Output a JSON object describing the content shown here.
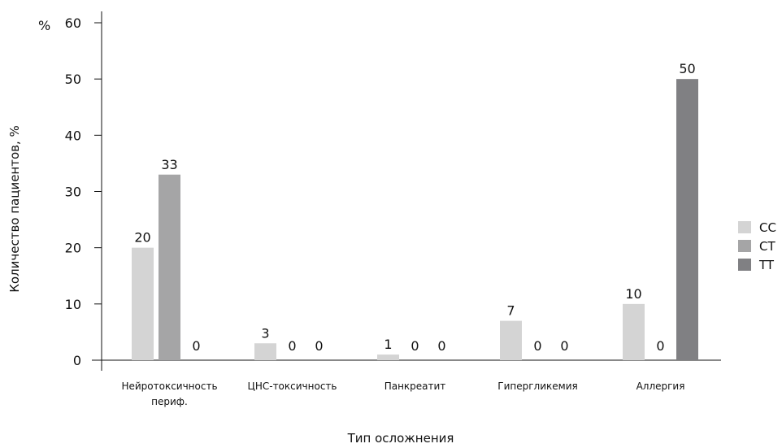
{
  "chart_data": {
    "type": "bar",
    "xlabel": "Тип осложнения",
    "ylabel": "Количество пациентов, %",
    "unit_label": "%",
    "ylim": [
      0,
      60
    ],
    "yticks": [
      0,
      10,
      20,
      30,
      40,
      50,
      60
    ],
    "categories": [
      [
        "Нейротоксичность",
        "периф."
      ],
      [
        "ЦНС-токсичность"
      ],
      [
        "Панкреатит"
      ],
      [
        "Гипергликемия"
      ],
      [
        "Аллергия"
      ]
    ],
    "series": [
      {
        "name": "CC",
        "color": "#d4d4d4",
        "values": [
          20,
          3,
          1,
          7,
          10
        ],
        "labels": [
          "20",
          "3",
          "1",
          "7",
          "10"
        ]
      },
      {
        "name": "CT",
        "color": "#a5a5a6",
        "values": [
          33,
          0,
          0,
          0,
          0
        ],
        "labels": [
          "33",
          "0",
          "0",
          "0",
          "0"
        ]
      },
      {
        "name": "TT",
        "color": "#808083",
        "values": [
          0,
          0,
          0,
          0,
          50
        ],
        "labels": [
          "0",
          "0",
          "0",
          "0",
          "50"
        ]
      }
    ],
    "legend_position": "right",
    "grid": false
  }
}
